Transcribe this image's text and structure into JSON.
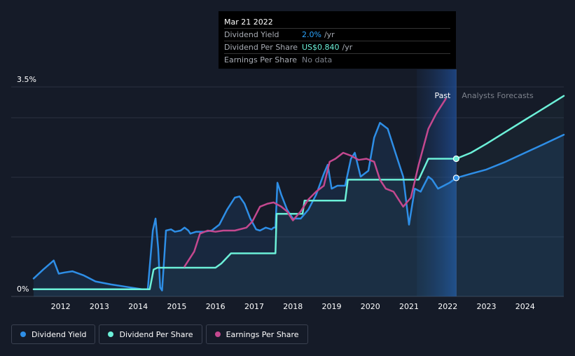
{
  "tooltip": {
    "date": "Mar 21 2022",
    "rows": [
      {
        "label": "Dividend Yield",
        "value": "2.0%",
        "unit": "/yr",
        "color": "#2ba5ff"
      },
      {
        "label": "Dividend Per Share",
        "value": "US$0.840",
        "unit": "/yr",
        "color": "#6cf0d8"
      },
      {
        "label": "Earnings Per Share",
        "value": "No data",
        "unit": "",
        "color": "#7d828c"
      }
    ]
  },
  "regions": {
    "past": "Past",
    "forecast": "Analysts Forecasts"
  },
  "legend": [
    {
      "label": "Dividend Yield",
      "color": "#2e8ee6"
    },
    {
      "label": "Dividend Per Share",
      "color": "#6cf0d8"
    },
    {
      "label": "Earnings Per Share",
      "color": "#c4488f"
    }
  ],
  "chart_data": {
    "type": "line",
    "ytick_labels": [
      "0%",
      "3.5%"
    ],
    "ylim": [
      0,
      3.5
    ],
    "xlim": [
      2011.3,
      2025.0
    ],
    "xticks": [
      2012,
      2013,
      2014,
      2015,
      2016,
      2017,
      2018,
      2019,
      2020,
      2021,
      2022,
      2023,
      2024
    ],
    "past_forecast_boundary": 2022.22,
    "forecast_shade_start": 2021.2,
    "grid": true,
    "series": [
      {
        "name": "Dividend Yield",
        "color": "#2e8ee6",
        "forecast_from": 2022.22,
        "points": [
          [
            2011.3,
            0.3
          ],
          [
            2011.55,
            0.45
          ],
          [
            2011.82,
            0.6
          ],
          [
            2011.95,
            0.38
          ],
          [
            2012.1,
            0.4
          ],
          [
            2012.3,
            0.42
          ],
          [
            2012.6,
            0.35
          ],
          [
            2012.9,
            0.25
          ],
          [
            2013.3,
            0.2
          ],
          [
            2013.7,
            0.16
          ],
          [
            2014.1,
            0.12
          ],
          [
            2014.25,
            0.12
          ],
          [
            2014.38,
            1.1
          ],
          [
            2014.45,
            1.3
          ],
          [
            2014.52,
            0.8
          ],
          [
            2014.57,
            0.15
          ],
          [
            2014.62,
            0.1
          ],
          [
            2014.68,
            0.7
          ],
          [
            2014.72,
            1.1
          ],
          [
            2014.85,
            1.12
          ],
          [
            2014.95,
            1.08
          ],
          [
            2015.1,
            1.1
          ],
          [
            2015.2,
            1.15
          ],
          [
            2015.3,
            1.1
          ],
          [
            2015.35,
            1.05
          ],
          [
            2015.5,
            1.08
          ],
          [
            2015.7,
            1.08
          ],
          [
            2015.9,
            1.1
          ],
          [
            2016.1,
            1.2
          ],
          [
            2016.3,
            1.45
          ],
          [
            2016.5,
            1.65
          ],
          [
            2016.62,
            1.67
          ],
          [
            2016.75,
            1.55
          ],
          [
            2016.9,
            1.3
          ],
          [
            2017.05,
            1.12
          ],
          [
            2017.15,
            1.1
          ],
          [
            2017.3,
            1.15
          ],
          [
            2017.45,
            1.12
          ],
          [
            2017.5,
            1.15
          ],
          [
            2017.55,
            1.15
          ],
          [
            2017.6,
            1.9
          ],
          [
            2017.7,
            1.7
          ],
          [
            2017.85,
            1.45
          ],
          [
            2018.0,
            1.3
          ],
          [
            2018.2,
            1.3
          ],
          [
            2018.4,
            1.45
          ],
          [
            2018.6,
            1.7
          ],
          [
            2018.8,
            2.05
          ],
          [
            2018.9,
            2.2
          ],
          [
            2019.0,
            1.8
          ],
          [
            2019.15,
            1.85
          ],
          [
            2019.35,
            1.85
          ],
          [
            2019.5,
            2.3
          ],
          [
            2019.6,
            2.4
          ],
          [
            2019.75,
            2.0
          ],
          [
            2019.85,
            2.05
          ],
          [
            2019.95,
            2.1
          ],
          [
            2020.1,
            2.65
          ],
          [
            2020.25,
            2.9
          ],
          [
            2020.45,
            2.8
          ],
          [
            2020.65,
            2.4
          ],
          [
            2020.85,
            2.0
          ],
          [
            2021.0,
            1.2
          ],
          [
            2021.15,
            1.8
          ],
          [
            2021.3,
            1.75
          ],
          [
            2021.5,
            2.0
          ],
          [
            2021.6,
            1.95
          ],
          [
            2021.75,
            1.8
          ],
          [
            2021.9,
            1.85
          ],
          [
            2022.05,
            1.9
          ],
          [
            2022.22,
            1.98
          ],
          [
            2022.6,
            2.05
          ],
          [
            2023.0,
            2.12
          ],
          [
            2023.5,
            2.25
          ],
          [
            2024.0,
            2.4
          ],
          [
            2024.5,
            2.55
          ],
          [
            2025.0,
            2.7
          ]
        ]
      },
      {
        "name": "Dividend Per Share",
        "color": "#6cf0d8",
        "forecast_from": 2022.22,
        "points": [
          [
            2011.3,
            0.12
          ],
          [
            2014.3,
            0.12
          ],
          [
            2014.4,
            0.45
          ],
          [
            2014.5,
            0.48
          ],
          [
            2016.0,
            0.48
          ],
          [
            2016.15,
            0.55
          ],
          [
            2016.4,
            0.72
          ],
          [
            2017.55,
            0.72
          ],
          [
            2017.58,
            1.38
          ],
          [
            2018.25,
            1.38
          ],
          [
            2018.3,
            1.6
          ],
          [
            2019.35,
            1.6
          ],
          [
            2019.42,
            1.95
          ],
          [
            2021.25,
            1.95
          ],
          [
            2021.5,
            2.3
          ],
          [
            2022.22,
            2.3
          ],
          [
            2022.6,
            2.4
          ],
          [
            2023.0,
            2.55
          ],
          [
            2023.5,
            2.75
          ],
          [
            2024.0,
            2.95
          ],
          [
            2024.5,
            3.15
          ],
          [
            2025.0,
            3.35
          ]
        ]
      },
      {
        "name": "Earnings Per Share",
        "color": "#c4488f",
        "forecast_from": null,
        "points": [
          [
            2015.2,
            0.5
          ],
          [
            2015.45,
            0.75
          ],
          [
            2015.6,
            1.05
          ],
          [
            2015.8,
            1.1
          ],
          [
            2016.0,
            1.08
          ],
          [
            2016.2,
            1.1
          ],
          [
            2016.5,
            1.1
          ],
          [
            2016.8,
            1.15
          ],
          [
            2016.95,
            1.25
          ],
          [
            2017.15,
            1.5
          ],
          [
            2017.35,
            1.55
          ],
          [
            2017.5,
            1.57
          ],
          [
            2017.7,
            1.5
          ],
          [
            2017.85,
            1.42
          ],
          [
            2018.0,
            1.27
          ],
          [
            2018.2,
            1.42
          ],
          [
            2018.4,
            1.62
          ],
          [
            2018.6,
            1.75
          ],
          [
            2018.8,
            1.85
          ],
          [
            2018.95,
            2.25
          ],
          [
            2019.1,
            2.3
          ],
          [
            2019.3,
            2.4
          ],
          [
            2019.5,
            2.35
          ],
          [
            2019.7,
            2.28
          ],
          [
            2019.9,
            2.3
          ],
          [
            2020.1,
            2.25
          ],
          [
            2020.25,
            1.95
          ],
          [
            2020.4,
            1.8
          ],
          [
            2020.6,
            1.75
          ],
          [
            2020.85,
            1.5
          ],
          [
            2021.05,
            1.65
          ],
          [
            2021.25,
            2.2
          ],
          [
            2021.5,
            2.8
          ],
          [
            2021.7,
            3.05
          ],
          [
            2021.95,
            3.3
          ]
        ]
      }
    ],
    "markers": [
      {
        "series": "Dividend Yield",
        "x": 2022.22,
        "y": 1.98
      },
      {
        "series": "Dividend Per Share",
        "x": 2022.22,
        "y": 2.3
      }
    ]
  }
}
